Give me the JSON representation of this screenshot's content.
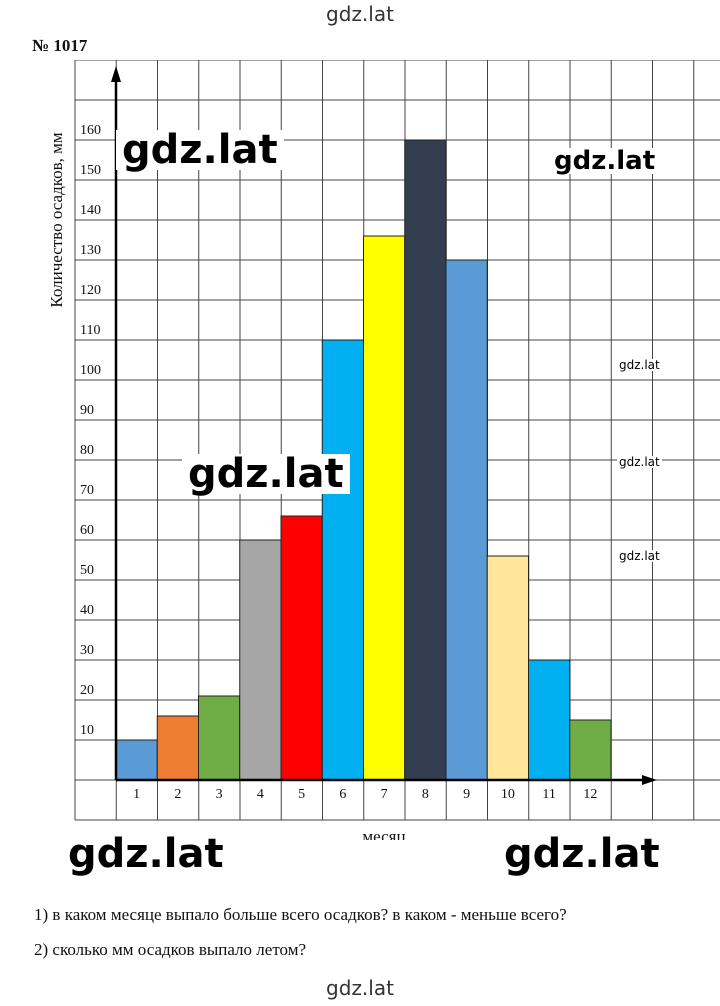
{
  "header": {
    "watermark": "gdz.lat",
    "task_number": "№ 1017"
  },
  "chart_data": {
    "type": "bar",
    "title": "",
    "xlabel": "месяц",
    "ylabel": "Количество осадков, мм",
    "ylim": [
      0,
      160
    ],
    "yticks": [
      10,
      20,
      30,
      40,
      50,
      60,
      70,
      80,
      90,
      100,
      110,
      120,
      130,
      140,
      150,
      160
    ],
    "categories": [
      "1",
      "2",
      "3",
      "4",
      "5",
      "6",
      "7",
      "8",
      "9",
      "10",
      "11",
      "12"
    ],
    "values": [
      10,
      16,
      21,
      60,
      66,
      110,
      136,
      160,
      130,
      56,
      30,
      15
    ],
    "colors": [
      "#5b9bd5",
      "#ed7d31",
      "#70ad47",
      "#a6a6a6",
      "#ff0000",
      "#00b0f0",
      "#ffff00",
      "#333f50",
      "#5b9bd5",
      "#ffe699",
      "#00b0f0",
      "#70ad47"
    ],
    "grid": true,
    "legend": "none"
  },
  "watermarks": [
    "gdz.lat",
    "gdz.lat",
    "gdz.lat",
    "gdz.lat",
    "gdz.lat",
    "gdz.lat",
    "gdz.lat",
    "gdz.lat",
    "gdz.lat"
  ],
  "questions": [
    "1) в каком месяце выпало больше всего осадков? в каком - меньше всего?",
    "2) сколько мм осадков выпало летом?"
  ],
  "footer": {
    "watermark": "gdz.lat"
  }
}
